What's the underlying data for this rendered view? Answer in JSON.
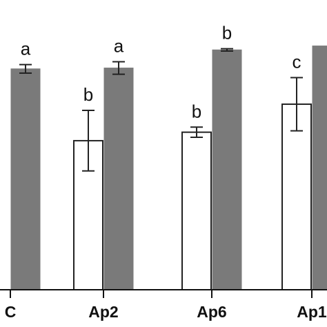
{
  "chart_data": {
    "type": "bar",
    "title": "",
    "xlabel": "",
    "ylabel": "",
    "categories": [
      "C",
      "Ap2",
      "Ap6",
      "Ap1"
    ],
    "ylim": [
      0,
      1.0
    ],
    "grid": false,
    "series": [
      {
        "fill": "#ffffff",
        "stroke": "#222222",
        "values": [
          null,
          0.527,
          0.557,
          0.656
        ],
        "errors": [
          null,
          0.107,
          0.018,
          0.094
        ],
        "labels": [
          "",
          "b",
          "b",
          "c"
        ]
      },
      {
        "fill": "#7a7a7a",
        "stroke": "#7a7a7a",
        "values": [
          0.781,
          0.784,
          0.848,
          0.862
        ],
        "errors": [
          0.015,
          0.022,
          0.004,
          null
        ],
        "labels": [
          "a",
          "a",
          "b",
          ""
        ]
      }
    ]
  }
}
